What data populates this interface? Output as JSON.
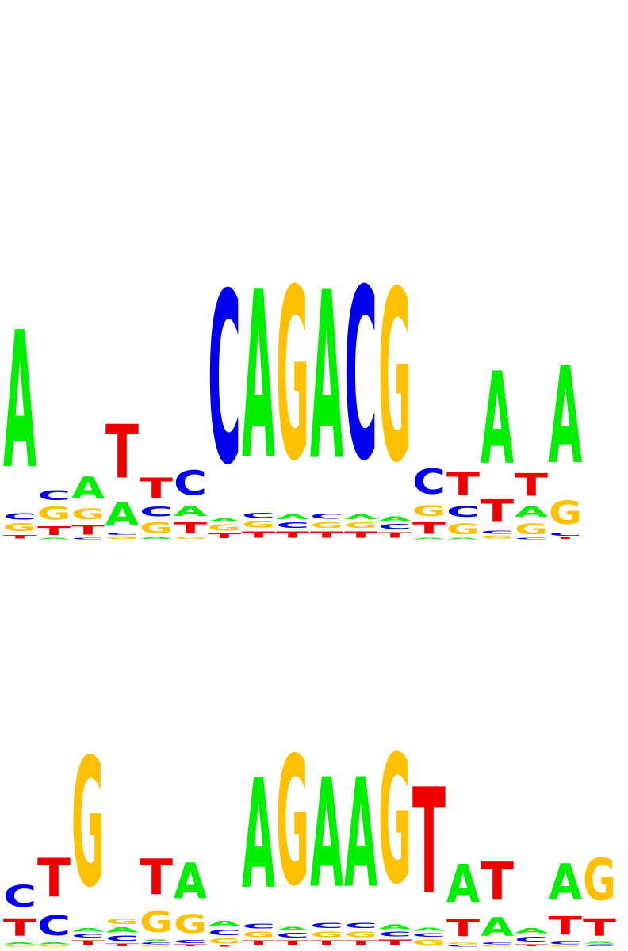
{
  "colors": {
    "A": "#00ee00",
    "C": "#0000ee",
    "G": "#ffc000",
    "T": "#ee0000"
  },
  "logos": [
    {
      "name": "logo-top",
      "columns": [
        [
          [
            "T",
            0.06
          ],
          [
            "G",
            0.12
          ],
          [
            "C",
            0.1
          ],
          [
            "A",
            2.17
          ]
        ],
        [
          [
            "A",
            0.02
          ],
          [
            "T",
            0.14
          ],
          [
            "G",
            0.2
          ],
          [
            "C",
            0.15
          ]
        ],
        [
          [
            "C",
            0.02
          ],
          [
            "T",
            0.15
          ],
          [
            "G",
            0.17
          ],
          [
            "A",
            0.34
          ]
        ],
        [
          [
            "G",
            0.04
          ],
          [
            "C",
            0.03
          ],
          [
            "A",
            0.37
          ],
          [
            "T",
            0.85
          ]
        ],
        [
          [
            "A",
            0.03
          ],
          [
            "G",
            0.17
          ],
          [
            "C",
            0.15
          ],
          [
            "T",
            0.32
          ]
        ],
        [
          [
            "G",
            0.03
          ],
          [
            "T",
            0.17
          ],
          [
            "A",
            0.16
          ],
          [
            "C",
            0.39
          ]
        ],
        [
          [
            "T",
            0.07
          ],
          [
            "G",
            0.1
          ],
          [
            "A",
            0.05
          ],
          [
            "C",
            2.71
          ]
        ],
        [
          [
            "T",
            0.1
          ],
          [
            "G",
            0.1
          ],
          [
            "C",
            0.08
          ],
          [
            "A",
            2.65
          ]
        ],
        [
          [
            "T",
            0.1
          ],
          [
            "C",
            0.09
          ],
          [
            "A",
            0.07
          ],
          [
            "G",
            2.71
          ]
        ],
        [
          [
            "T",
            0.1
          ],
          [
            "G",
            0.09
          ],
          [
            "C",
            0.08
          ],
          [
            "A",
            2.66
          ]
        ],
        [
          [
            "T",
            0.1
          ],
          [
            "G",
            0.09
          ],
          [
            "A",
            0.07
          ],
          [
            "C",
            2.71
          ]
        ],
        [
          [
            "T",
            0.09
          ],
          [
            "C",
            0.08
          ],
          [
            "A",
            0.07
          ],
          [
            "G",
            2.71
          ]
        ],
        [
          [
            "A",
            0.02
          ],
          [
            "T",
            0.18
          ],
          [
            "G",
            0.17
          ],
          [
            "C",
            0.4
          ]
        ],
        [
          [
            "A",
            0.02
          ],
          [
            "G",
            0.17
          ],
          [
            "C",
            0.17
          ],
          [
            "T",
            0.37
          ]
        ],
        [
          [
            "G",
            0.05
          ],
          [
            "C",
            0.05
          ],
          [
            "T",
            0.36
          ],
          [
            "A",
            1.46
          ]
        ],
        [
          [
            "C",
            0.02
          ],
          [
            "G",
            0.17
          ],
          [
            "A",
            0.17
          ],
          [
            "T",
            0.36
          ]
        ],
        [
          [
            "T",
            0.03
          ],
          [
            "C",
            0.05
          ],
          [
            "G",
            0.37
          ],
          [
            "A",
            1.54
          ]
        ]
      ]
    },
    {
      "name": "logo-bottom",
      "columns": [
        [
          [
            "G",
            0.02
          ],
          [
            "A",
            0.03
          ],
          [
            "T",
            0.28
          ],
          [
            "C",
            0.34
          ]
        ],
        [
          [
            "G",
            0.02
          ],
          [
            "A",
            0.03
          ],
          [
            "C",
            0.32
          ],
          [
            "T",
            0.61
          ]
        ],
        [
          [
            "T",
            0.08
          ],
          [
            "C",
            0.06
          ],
          [
            "A",
            0.06
          ],
          [
            "G",
            2.03
          ]
        ],
        [
          [
            "T",
            0.04
          ],
          [
            "C",
            0.09
          ],
          [
            "A",
            0.08
          ],
          [
            "G",
            0.09
          ]
        ],
        [
          [
            "G",
            0.02
          ],
          [
            "C",
            0.03
          ],
          [
            "A",
            0.03
          ],
          [
            "G",
            0.33
          ],
          [
            "T",
            0.56
          ]
        ],
        [
          [
            "T",
            0.03
          ],
          [
            "C",
            0.05
          ],
          [
            "G",
            0.29
          ],
          [
            "A",
            0.56
          ]
        ],
        [
          [
            "T",
            0.02
          ],
          [
            "G",
            0.08
          ],
          [
            "C",
            0.09
          ],
          [
            "A",
            0.08
          ]
        ],
        [
          [
            "T",
            0.08
          ],
          [
            "G",
            0.09
          ],
          [
            "C",
            0.07
          ],
          [
            "A",
            1.73
          ]
        ],
        [
          [
            "T",
            0.08
          ],
          [
            "C",
            0.07
          ],
          [
            "A",
            0.06
          ],
          [
            "G",
            2.04
          ]
        ],
        [
          [
            "T",
            0.08
          ],
          [
            "G",
            0.09
          ],
          [
            "C",
            0.08
          ],
          [
            "A",
            1.73
          ]
        ],
        [
          [
            "T",
            0.08
          ],
          [
            "G",
            0.09
          ],
          [
            "C",
            0.08
          ],
          [
            "A",
            1.73
          ]
        ],
        [
          [
            "T",
            0.09
          ],
          [
            "C",
            0.07
          ],
          [
            "A",
            0.07
          ],
          [
            "G",
            2.03
          ]
        ],
        [
          [
            "G",
            0.09
          ],
          [
            "C",
            0.06
          ],
          [
            "A",
            0.05
          ],
          [
            "T",
            1.67
          ]
        ],
        [
          [
            "C",
            0.02
          ],
          [
            "G",
            0.03
          ],
          [
            "T",
            0.27
          ],
          [
            "A",
            0.6
          ]
        ],
        [
          [
            "G",
            0.02
          ],
          [
            "C",
            0.03
          ],
          [
            "A",
            0.29
          ],
          [
            "T",
            0.6
          ]
        ],
        [
          [
            "T",
            0.03
          ],
          [
            "C",
            0.09
          ],
          [
            "A",
            0.08
          ]
        ],
        [
          [
            "G",
            0.02
          ],
          [
            "C",
            0.04
          ],
          [
            "T",
            0.29
          ],
          [
            "A",
            0.57
          ]
        ],
        [
          [
            "C",
            0.03
          ],
          [
            "A",
            0.02
          ],
          [
            "T",
            0.28
          ],
          [
            "G",
            0.66
          ]
        ]
      ]
    }
  ]
}
